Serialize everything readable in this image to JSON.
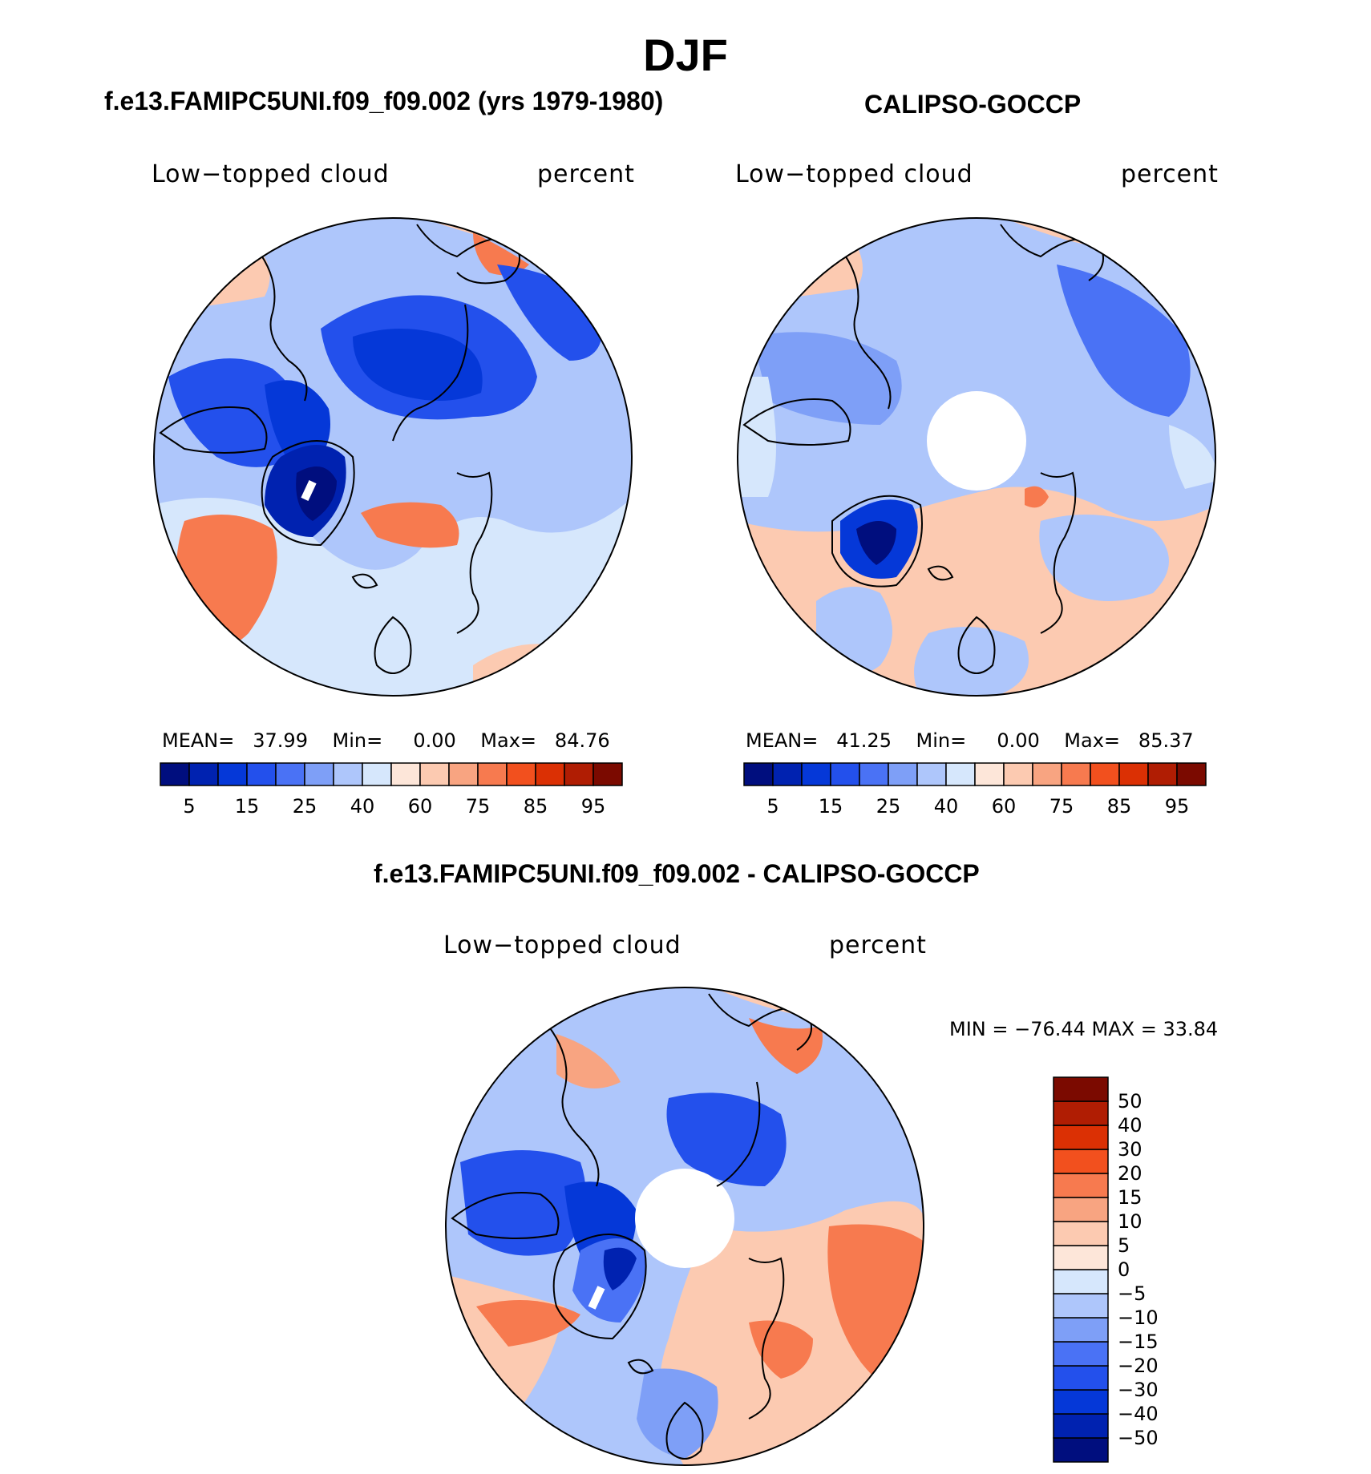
{
  "figure": {
    "title": "DJF",
    "panels": [
      {
        "id": "model",
        "case_title": "f.e13.FAMIPC5UNI.f09_f09.002 (yrs 1979-1980)",
        "variable": "Low−topped cloud",
        "units": "percent",
        "stats": {
          "mean_label": "MEAN=",
          "mean": "37.99",
          "min_label": "Min=",
          "min": "0.00",
          "max_label": "Max=",
          "max": "84.76"
        }
      },
      {
        "id": "obs",
        "case_title": "CALIPSO-GOCCP",
        "variable": "Low−topped cloud",
        "units": "percent",
        "stats": {
          "mean_label": "MEAN=",
          "mean": "41.25",
          "min_label": "Min=",
          "min": "0.00",
          "max_label": "Max=",
          "max": "85.37"
        }
      },
      {
        "id": "diff",
        "case_title": "f.e13.FAMIPC5UNI.f09_f09.002 - CALIPSO-GOCCP",
        "variable": "Low−topped cloud",
        "units": "percent",
        "stats_text": "MIN = −76.44 MAX =   33.84"
      }
    ]
  },
  "colorbar_abs": {
    "colors": [
      "#000e7e",
      "#0022b0",
      "#0538d8",
      "#2350ec",
      "#4a72f5",
      "#7e9ff7",
      "#aec6fb",
      "#d6e7fc",
      "#fde6d9",
      "#fccab1",
      "#f8a481",
      "#f77a4f",
      "#f2501e",
      "#db3004",
      "#b01d03",
      "#7b0a00"
    ],
    "tick_labels": [
      "5",
      "15",
      "25",
      "40",
      "60",
      "75",
      "85",
      "95"
    ]
  },
  "colorbar_diff": {
    "colors": [
      "#000e7e",
      "#0022b0",
      "#0538d8",
      "#2350ec",
      "#4a72f5",
      "#7e9ff7",
      "#aec6fb",
      "#d6e7fc",
      "#fde6d9",
      "#fccab1",
      "#f8a481",
      "#f77a4f",
      "#f2501e",
      "#db3004",
      "#b01d03",
      "#7b0a00"
    ],
    "tick_labels": [
      "50",
      "40",
      "30",
      "20",
      "15",
      "10",
      "5",
      "0",
      "−5",
      "−10",
      "−15",
      "−20",
      "−30",
      "−40",
      "−50"
    ]
  },
  "colors": {
    "ocean_light": "#d6e7fc",
    "blue_mid": "#7e9ff7",
    "blue_dark": "#2350ec",
    "blue_deep": "#0022b0",
    "peach": "#fccab1",
    "orange": "#f77a4f",
    "coast": "#000000"
  }
}
